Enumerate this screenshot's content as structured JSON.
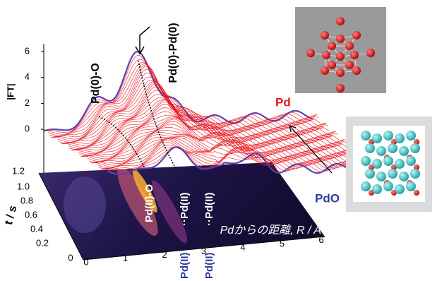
{
  "ft_axis": {
    "label": "|FT|",
    "ticks": [
      "6",
      "4",
      "2",
      "0"
    ]
  },
  "time_axis": {
    "label": "t / s",
    "ticks": [
      "1.2",
      "1.0",
      "0.8",
      "0.6",
      "0.4",
      "0.2",
      "0"
    ]
  },
  "r_axis": {
    "label": "Pdからの距離, R / A",
    "ticks": [
      "0",
      "1",
      "2",
      "3",
      "4",
      "5",
      "6"
    ]
  },
  "annotations": {
    "pd0_o": "Pd(0)-O",
    "pd0_pd0": "Pd(0)-Pd(0)",
    "pd": "Pd",
    "pdo": "PdO",
    "pd2_o": "Pd(II)-O",
    "pd2_pd2_a": "··Pd(II)",
    "pd2_pd2_b": "··Pd(II)",
    "blue_a": "Pd(II)",
    "blue_b": "Pd(II)"
  }
}
